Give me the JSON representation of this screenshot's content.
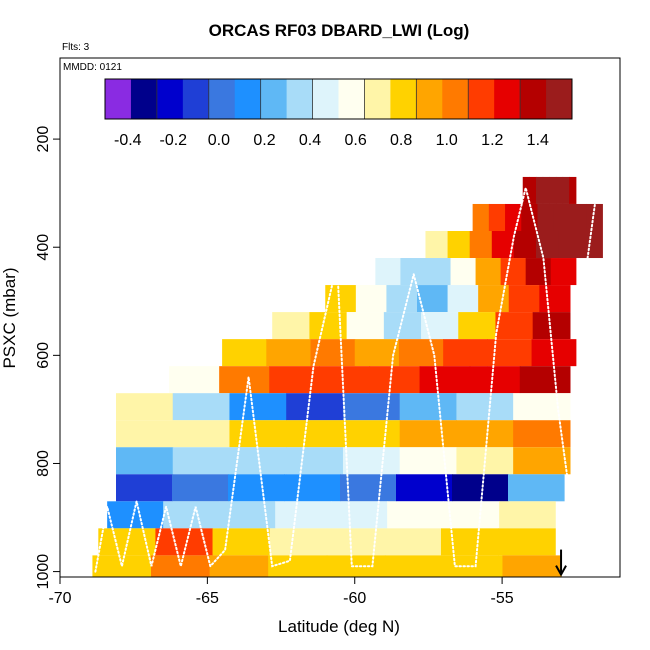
{
  "chart_data": {
    "type": "heatmap",
    "title": "ORCAS RF03 DBARD_LWI (Log)",
    "flights_note": "Flts: 3",
    "date_note": "MMDD: 0121",
    "xlabel": "Latitude (deg N)",
    "ylabel": "PSXC (mbar)",
    "xlim": [
      -70,
      -51
    ],
    "ylim": [
      1010,
      50
    ],
    "x_ticks": [
      -70,
      -65,
      -60,
      -55
    ],
    "y_ticks": [
      200,
      400,
      600,
      800,
      1000
    ],
    "colorbar": {
      "min": -0.5,
      "max": 1.55,
      "ticks": [
        -0.4,
        -0.2,
        0.0,
        0.2,
        0.4,
        0.6,
        0.8,
        1.0,
        1.2,
        1.4
      ],
      "tick_labels": [
        "-0.4",
        "-0.2",
        "0.0",
        "0.2",
        "0.4",
        "0.6",
        "0.8",
        "1.0",
        "1.2",
        "1.4"
      ],
      "colors": [
        "#8a2be2",
        "#00008b",
        "#0000cd",
        "#1f3fd6",
        "#3a78e0",
        "#1e90ff",
        "#5fb8f5",
        "#a8dcf8",
        "#def4fb",
        "#fffff0",
        "#fff5a8",
        "#ffd200",
        "#ffa500",
        "#ff7a00",
        "#ff3c00",
        "#e60000",
        "#b40000",
        "#9b1c1c"
      ]
    },
    "layers": [
      {
        "p_top": 270,
        "p_bot": 320,
        "x_start": -54.3,
        "x_end": -52.5,
        "values": [
          1.35,
          1.42,
          1.45,
          1.48,
          1.5,
          1.47,
          1.45,
          1.43
        ]
      },
      {
        "p_top": 320,
        "p_bot": 370,
        "x_start": -56.0,
        "x_end": -51.6,
        "values": [
          1.05,
          1.15,
          1.25,
          1.4,
          1.5,
          1.52,
          1.53,
          1.5
        ]
      },
      {
        "p_top": 370,
        "p_bot": 420,
        "x_start": -57.6,
        "x_end": -51.6,
        "values": [
          0.7,
          0.85,
          1.05,
          1.25,
          1.4,
          1.5,
          1.53,
          1.52
        ]
      },
      {
        "p_top": 420,
        "p_bot": 470,
        "x_start": -59.3,
        "x_end": -52.5,
        "values": [
          0.5,
          0.35,
          0.3,
          0.6,
          0.9,
          1.2,
          1.4,
          1.3
        ]
      },
      {
        "p_top": 470,
        "p_bot": 520,
        "x_start": -61.0,
        "x_end": -52.7,
        "values": [
          0.8,
          0.6,
          0.3,
          0.25,
          0.5,
          0.9,
          1.2,
          1.3
        ]
      },
      {
        "p_top": 520,
        "p_bot": 570,
        "x_start": -62.8,
        "x_end": -52.7,
        "values": [
          0.7,
          0.8,
          0.6,
          0.3,
          0.5,
          0.85,
          1.2,
          1.35
        ]
      },
      {
        "p_top": 570,
        "p_bot": 620,
        "x_start": -64.5,
        "x_end": -52.5,
        "values": [
          0.8,
          0.9,
          1.0,
          0.95,
          1.0,
          1.1,
          1.2,
          1.25
        ]
      },
      {
        "p_top": 620,
        "p_bot": 670,
        "x_start": -66.3,
        "x_end": -52.7,
        "values": [
          0.6,
          1.05,
          1.15,
          1.2,
          1.2,
          1.25,
          1.3,
          1.35
        ]
      },
      {
        "p_top": 670,
        "p_bot": 720,
        "x_start": -68.1,
        "x_end": -52.7,
        "values": [
          0.65,
          0.4,
          0.15,
          -0.1,
          0.05,
          0.2,
          0.35,
          0.6
        ]
      },
      {
        "p_top": 720,
        "p_bot": 770,
        "x_start": -68.1,
        "x_end": -52.7,
        "values": [
          0.7,
          0.75,
          0.8,
          0.8,
          0.85,
          0.9,
          0.95,
          1.0
        ]
      },
      {
        "p_top": 770,
        "p_bot": 820,
        "x_start": -68.1,
        "x_end": -52.7,
        "values": [
          0.25,
          0.3,
          0.35,
          0.4,
          0.45,
          0.55,
          0.7,
          0.95
        ]
      },
      {
        "p_top": 820,
        "p_bot": 870,
        "x_start": -68.1,
        "x_end": -52.9,
        "values": [
          -0.1,
          0.05,
          0.1,
          0.15,
          0.0,
          -0.2,
          -0.3,
          0.2
        ]
      },
      {
        "p_top": 870,
        "p_bot": 920,
        "x_start": -68.4,
        "x_end": -53.2,
        "values": [
          0.15,
          0.3,
          0.35,
          0.45,
          0.5,
          0.55,
          0.6,
          0.65
        ]
      },
      {
        "p_top": 920,
        "p_bot": 970,
        "x_start": -68.7,
        "x_end": -53.2,
        "values": [
          0.85,
          1.1,
          0.8,
          0.7,
          0.72,
          0.75,
          0.78,
          0.8
        ]
      },
      {
        "p_top": 970,
        "p_bot": 1010,
        "x_start": -68.9,
        "x_end": -53.0,
        "values": [
          0.8,
          1.0,
          0.95,
          0.85,
          0.8,
          0.78,
          0.8,
          0.95
        ]
      }
    ],
    "flight_track_lat": [
      -68.8,
      -68.4,
      -67.9,
      -67.4,
      -66.9,
      -66.4,
      -65.9,
      -65.4,
      -64.9,
      -64.4,
      -63.6,
      -62.8,
      -62.2,
      -61.4,
      -60.6,
      -60.1,
      -59.4,
      -58.7,
      -58.0,
      -57.3,
      -56.6,
      -55.9,
      -55.2,
      -54.6,
      -54.2,
      -53.6,
      -53.1,
      -52.6,
      -52.1,
      -51.8
    ],
    "flight_track_p": [
      1000,
      880,
      990,
      870,
      990,
      880,
      990,
      880,
      990,
      960,
      640,
      990,
      980,
      620,
      430,
      990,
      990,
      600,
      450,
      600,
      990,
      990,
      560,
      380,
      290,
      420,
      700,
      900,
      420,
      300
    ],
    "marker": {
      "lat": -53.0,
      "p": 1000
    }
  }
}
